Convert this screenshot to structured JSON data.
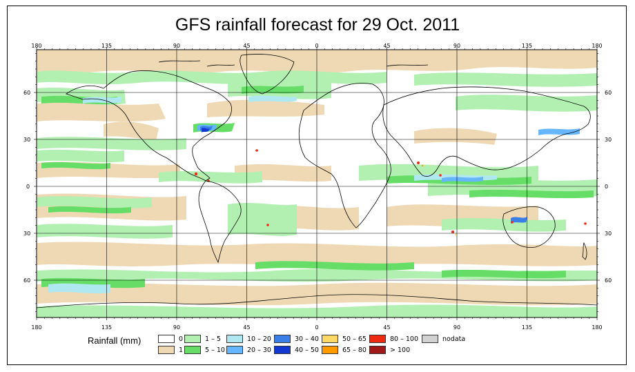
{
  "title": "GFS rainfall forecast for 29 Oct. 2011",
  "lon_ticks": [
    "180",
    "135",
    "90",
    "45",
    "0",
    "45",
    "90",
    "135",
    "180"
  ],
  "lat_ticks": [
    "60",
    "30",
    "0",
    "30",
    "60"
  ],
  "legend": {
    "title": "Rainfall (mm)",
    "items": [
      {
        "label": "0",
        "color": "#ffffff"
      },
      {
        "label": "1",
        "color": "#eed9b4"
      },
      {
        "label": "1 – 5",
        "color": "#b2f0b2"
      },
      {
        "label": "5 – 10",
        "color": "#66dd66"
      },
      {
        "label": "10 – 20",
        "color": "#b0e8f2"
      },
      {
        "label": "20 – 30",
        "color": "#66b6ff"
      },
      {
        "label": "30 – 40",
        "color": "#3a7fe8"
      },
      {
        "label": "40 – 50",
        "color": "#1238d2"
      },
      {
        "label": "50 – 65",
        "color": "#ffd966"
      },
      {
        "label": "65 – 80",
        "color": "#ff9a00"
      },
      {
        "label": "80 – 100",
        "color": "#ee2a12"
      },
      {
        "label": "> 100",
        "color": "#a01818"
      },
      {
        "label": "nodata",
        "color": "#d2d2d2"
      }
    ]
  }
}
